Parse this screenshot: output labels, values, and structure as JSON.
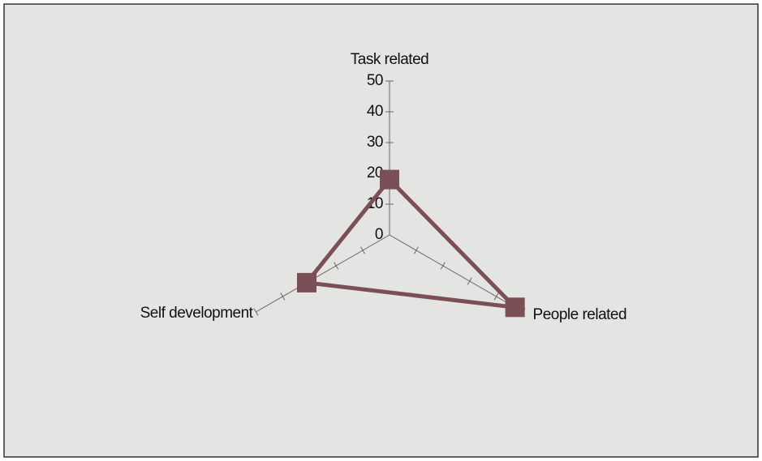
{
  "chart_data": {
    "type": "radar",
    "categories": [
      "Task related",
      "People related",
      "Self development"
    ],
    "series": [
      {
        "color": "#7a4f55",
        "values": [
          18,
          47,
          31
        ]
      }
    ],
    "ylim": [
      0,
      50
    ],
    "yticks": [
      0,
      10,
      20,
      30,
      40,
      50
    ]
  }
}
